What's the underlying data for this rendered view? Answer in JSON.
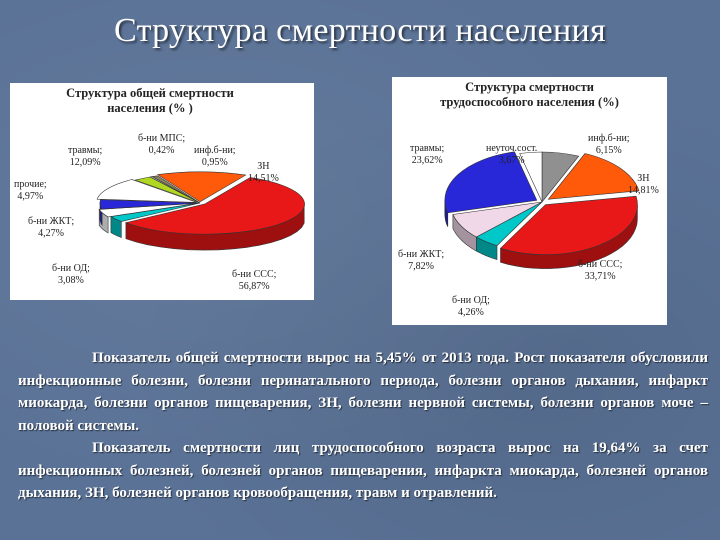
{
  "slide": {
    "title": "Структура смертности населения",
    "paragraph1": "Показатель общей смертности вырос на 5,45% от 2013 года. Рост показателя обусловили инфекционные болезни, болезни перинатального периода, болезни органов дыхания, инфаркт миокарда, болезни органов пищеварения, ЗН, болезни нервной системы, болезни органов моче – половой системы.",
    "paragraph2": "Показатель смертности лиц трудоспособного возраста вырос на 19,64% за счет инфекционных болезней, болезней органов пищеварения, инфаркта миокарда, болезней органов дыхания, ЗН, болезней органов кровообращения, травм и отравлений."
  },
  "chart_data": [
    {
      "type": "pie",
      "title": "Структура общей смертности\nнаселения (% )",
      "slices": [
        {
          "name": "б-ни МПС;",
          "value_label": "0,42%",
          "value": 0.42,
          "color": "#c8d8e8"
        },
        {
          "name": "инф.б-ни;",
          "value_label": "0,95%",
          "value": 0.95,
          "color": "#8c7f5c"
        },
        {
          "name": "ЗН",
          "value_label": "14,51%",
          "value": 14.51,
          "color": "#ff5a0a"
        },
        {
          "name": "б-ни ССС;",
          "value_label": "56,87%",
          "value": 56.87,
          "color": "#e81818"
        },
        {
          "name": "б-ни ОД;",
          "value_label": "3,08%",
          "value": 3.08,
          "color": "#00c8c8"
        },
        {
          "name": "б-ни ЖКТ;",
          "value_label": "4,27%",
          "value": 4.27,
          "color": "#ffffff"
        },
        {
          "name": "прочие;",
          "value_label": "4,97%",
          "value": 4.97,
          "color": "#2828d8"
        },
        {
          "name": "травмы;",
          "value_label": "12,09%",
          "value": 12.09,
          "color": "#ffffff"
        },
        {
          "name": "",
          "value_label": "",
          "value": 2.84,
          "color": "#b0d820"
        }
      ]
    },
    {
      "type": "pie",
      "title": "Структура смертности\nтрудоспособного населения (%)",
      "slices": [
        {
          "name": "инф.б-ни;",
          "value_label": "6,15%",
          "value": 6.15,
          "color": "#909090"
        },
        {
          "name": "ЗН",
          "value_label": "14,81%",
          "value": 14.81,
          "color": "#ff5a0a"
        },
        {
          "name": "б-ни ССС;",
          "value_label": "33,71%",
          "value": 33.71,
          "color": "#e81818"
        },
        {
          "name": "б-ни ОД;",
          "value_label": "4,26%",
          "value": 4.26,
          "color": "#00c8c8"
        },
        {
          "name": "б-ни ЖКТ;",
          "value_label": "7,82%",
          "value": 7.82,
          "color": "#f0d8e8"
        },
        {
          "name": "травмы;",
          "value_label": "23,62%",
          "value": 23.62,
          "color": "#2828d8"
        },
        {
          "name": "неуточ.сост.",
          "value_label": "3,67%",
          "value": 3.67,
          "color": "#ffffff"
        }
      ]
    }
  ]
}
